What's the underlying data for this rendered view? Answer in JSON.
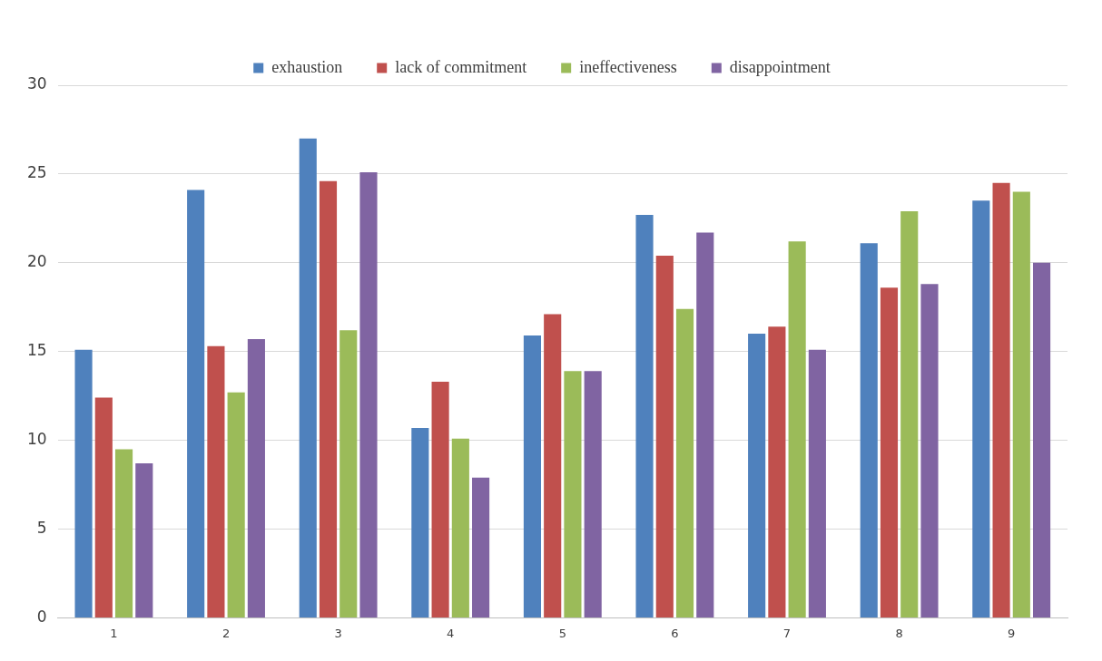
{
  "chart_data": {
    "type": "bar",
    "categories": [
      "1",
      "2",
      "3",
      "4",
      "5",
      "6",
      "7",
      "8",
      "9"
    ],
    "series": [
      {
        "name": "exhaustion",
        "color": "#4f81bd",
        "values": [
          15.1,
          24.1,
          27.0,
          10.7,
          15.9,
          22.7,
          16.0,
          21.1,
          23.5
        ]
      },
      {
        "name": "lack of commitment",
        "color": "#c0504d",
        "values": [
          12.4,
          15.3,
          24.6,
          13.3,
          17.1,
          20.4,
          16.4,
          18.6,
          24.5
        ]
      },
      {
        "name": "ineffectiveness",
        "color": "#9bbb59",
        "values": [
          9.5,
          12.7,
          16.2,
          10.1,
          13.9,
          17.4,
          21.2,
          22.9,
          24.0
        ]
      },
      {
        "name": "disappointment",
        "color": "#8064a2",
        "values": [
          8.7,
          15.7,
          25.1,
          7.9,
          13.9,
          21.7,
          15.1,
          18.8,
          20.0
        ]
      }
    ],
    "ylim": [
      0,
      30
    ],
    "yticks": [
      0,
      5,
      10,
      15,
      20,
      25,
      30
    ],
    "grid": "y",
    "legend": "top"
  }
}
